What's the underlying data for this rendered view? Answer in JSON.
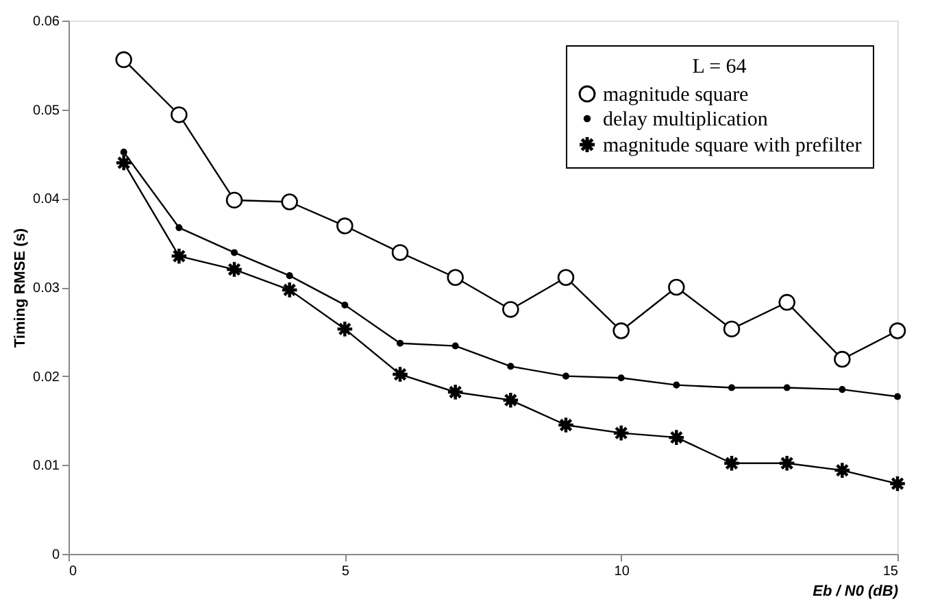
{
  "chart_data": {
    "type": "line",
    "xlabel": "Eb / N0    (dB)",
    "ylabel": "Timing RMSE (s)",
    "legend_title": "L = 64",
    "legend": "top right",
    "grid": false,
    "line_style": "solid",
    "xlim": [
      0,
      15
    ],
    "xticks": [
      0,
      5,
      10,
      15
    ],
    "ylim": [
      0,
      0.06
    ],
    "yticks": [
      0,
      0.01,
      0.02,
      0.03,
      0.04,
      0.05,
      0.06
    ],
    "x": [
      1,
      2,
      3,
      4,
      5,
      6,
      7,
      8,
      9,
      10,
      11,
      12,
      13,
      14,
      15
    ],
    "series": [
      {
        "name": "magnitude square",
        "color": "#000000",
        "marker": "circle",
        "values": [
          0.0556,
          0.0494,
          0.0398,
          0.0396,
          0.0369,
          0.0339,
          0.0311,
          0.0275,
          0.0311,
          0.0251,
          0.03,
          0.0253,
          0.0283,
          0.0219,
          0.0251
        ]
      },
      {
        "name": "delay multiplication",
        "color": "#000000",
        "marker": "circle",
        "values": [
          0.0452,
          0.0367,
          0.0339,
          0.0313,
          0.028,
          0.0237,
          0.0234,
          0.0211,
          0.02,
          0.0198,
          0.019,
          0.0187,
          0.0187,
          0.0185,
          0.0177
        ]
      },
      {
        "name": "magnitude square with prefilter",
        "color": "#000000",
        "marker": "star",
        "values": [
          0.044,
          0.0335,
          0.032,
          0.0297,
          0.0253,
          0.0202,
          0.0182,
          0.0173,
          0.0145,
          0.0136,
          0.0131,
          0.0102,
          0.0102,
          0.0094,
          0.0079
        ]
      }
    ]
  }
}
